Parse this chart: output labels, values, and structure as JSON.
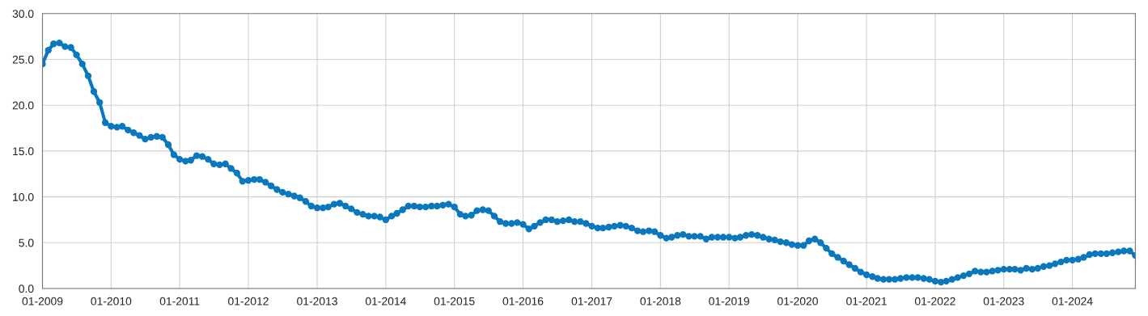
{
  "chart_data": {
    "type": "line",
    "x": [
      "2009-01",
      "2009-02",
      "2009-03",
      "2009-04",
      "2009-05",
      "2009-06",
      "2009-07",
      "2009-08",
      "2009-09",
      "2009-10",
      "2009-11",
      "2009-12",
      "2010-01",
      "2010-02",
      "2010-03",
      "2010-04",
      "2010-05",
      "2010-06",
      "2010-07",
      "2010-08",
      "2010-09",
      "2010-10",
      "2010-11",
      "2010-12",
      "2011-01",
      "2011-02",
      "2011-03",
      "2011-04",
      "2011-05",
      "2011-06",
      "2011-07",
      "2011-08",
      "2011-09",
      "2011-10",
      "2011-11",
      "2011-12",
      "2012-01",
      "2012-02",
      "2012-03",
      "2012-04",
      "2012-05",
      "2012-06",
      "2012-07",
      "2012-08",
      "2012-09",
      "2012-10",
      "2012-11",
      "2012-12",
      "2013-01",
      "2013-02",
      "2013-03",
      "2013-04",
      "2013-05",
      "2013-06",
      "2013-07",
      "2013-08",
      "2013-09",
      "2013-10",
      "2013-11",
      "2013-12",
      "2014-01",
      "2014-02",
      "2014-03",
      "2014-04",
      "2014-05",
      "2014-06",
      "2014-07",
      "2014-08",
      "2014-09",
      "2014-10",
      "2014-11",
      "2014-12",
      "2015-01",
      "2015-02",
      "2015-03",
      "2015-04",
      "2015-05",
      "2015-06",
      "2015-07",
      "2015-08",
      "2015-09",
      "2015-10",
      "2015-11",
      "2015-12",
      "2016-01",
      "2016-02",
      "2016-03",
      "2016-04",
      "2016-05",
      "2016-06",
      "2016-07",
      "2016-08",
      "2016-09",
      "2016-10",
      "2016-11",
      "2016-12",
      "2017-01",
      "2017-02",
      "2017-03",
      "2017-04",
      "2017-05",
      "2017-06",
      "2017-07",
      "2017-08",
      "2017-09",
      "2017-10",
      "2017-11",
      "2017-12",
      "2018-01",
      "2018-02",
      "2018-03",
      "2018-04",
      "2018-05",
      "2018-06",
      "2018-07",
      "2018-08",
      "2018-09",
      "2018-10",
      "2018-11",
      "2018-12",
      "2019-01",
      "2019-02",
      "2019-03",
      "2019-04",
      "2019-05",
      "2019-06",
      "2019-07",
      "2019-08",
      "2019-09",
      "2019-10",
      "2019-11",
      "2019-12",
      "2020-01",
      "2020-02",
      "2020-03",
      "2020-04",
      "2020-05",
      "2020-06",
      "2020-07",
      "2020-08",
      "2020-09",
      "2020-10",
      "2020-11",
      "2020-12",
      "2021-01",
      "2021-02",
      "2021-03",
      "2021-04",
      "2021-05",
      "2021-06",
      "2021-07",
      "2021-08",
      "2021-09",
      "2021-10",
      "2021-11",
      "2021-12",
      "2022-01",
      "2022-02",
      "2022-03",
      "2022-04",
      "2022-05",
      "2022-06",
      "2022-07",
      "2022-08",
      "2022-09",
      "2022-10",
      "2022-11",
      "2022-12",
      "2023-01",
      "2023-02",
      "2023-03",
      "2023-04",
      "2023-05",
      "2023-06",
      "2023-07",
      "2023-08",
      "2023-09",
      "2023-10",
      "2023-11",
      "2023-12",
      "2024-01",
      "2024-02",
      "2024-03",
      "2024-04",
      "2024-05",
      "2024-06",
      "2024-07",
      "2024-08",
      "2024-09",
      "2024-10",
      "2024-11",
      "2024-12"
    ],
    "series": [
      {
        "color": "#0b77bd",
        "values": [
          24.5,
          26.0,
          26.7,
          26.8,
          26.4,
          26.3,
          25.5,
          24.5,
          23.2,
          21.5,
          20.3,
          18.1,
          17.7,
          17.6,
          17.7,
          17.3,
          17.0,
          16.7,
          16.3,
          16.5,
          16.6,
          16.5,
          15.7,
          14.6,
          14.1,
          13.9,
          14.0,
          14.5,
          14.4,
          14.1,
          13.6,
          13.5,
          13.6,
          13.1,
          12.6,
          11.7,
          11.8,
          11.9,
          11.9,
          11.6,
          11.2,
          10.8,
          10.5,
          10.3,
          10.1,
          9.9,
          9.5,
          9.0,
          8.8,
          8.8,
          8.9,
          9.2,
          9.3,
          9.0,
          8.7,
          8.3,
          8.1,
          7.9,
          7.9,
          7.8,
          7.5,
          7.9,
          8.2,
          8.6,
          9.0,
          9.0,
          8.9,
          8.9,
          9.0,
          9.0,
          9.1,
          9.2,
          8.9,
          8.1,
          7.9,
          8.0,
          8.5,
          8.6,
          8.5,
          7.9,
          7.3,
          7.1,
          7.1,
          7.2,
          7.0,
          6.5,
          6.8,
          7.2,
          7.5,
          7.5,
          7.3,
          7.4,
          7.5,
          7.3,
          7.3,
          7.1,
          6.8,
          6.6,
          6.6,
          6.7,
          6.8,
          6.9,
          6.8,
          6.6,
          6.3,
          6.2,
          6.3,
          6.2,
          5.8,
          5.5,
          5.6,
          5.8,
          5.9,
          5.7,
          5.7,
          5.7,
          5.4,
          5.6,
          5.6,
          5.6,
          5.6,
          5.5,
          5.6,
          5.8,
          5.9,
          5.8,
          5.6,
          5.4,
          5.3,
          5.1,
          5.0,
          4.8,
          4.7,
          4.7,
          5.2,
          5.4,
          5.0,
          4.4,
          3.8,
          3.4,
          3.0,
          2.6,
          2.2,
          1.8,
          1.5,
          1.3,
          1.1,
          1.0,
          1.0,
          1.0,
          1.1,
          1.2,
          1.2,
          1.2,
          1.1,
          1.0,
          0.8,
          0.7,
          0.8,
          1.0,
          1.2,
          1.4,
          1.6,
          1.9,
          1.8,
          1.8,
          1.9,
          2.0,
          2.1,
          2.1,
          2.1,
          2.0,
          2.2,
          2.1,
          2.2,
          2.4,
          2.5,
          2.7,
          2.9,
          3.1,
          3.1,
          3.2,
          3.4,
          3.7,
          3.8,
          3.8,
          3.8,
          3.9,
          4.0,
          4.1,
          4.1,
          3.6
        ]
      }
    ],
    "xlim": [
      "2009-01",
      "2024-12"
    ],
    "xticks": [
      {
        "value": "2009-01",
        "label": "01-2009"
      },
      {
        "value": "2010-01",
        "label": "01-2010"
      },
      {
        "value": "2011-01",
        "label": "01-2011"
      },
      {
        "value": "2012-01",
        "label": "01-2012"
      },
      {
        "value": "2013-01",
        "label": "01-2013"
      },
      {
        "value": "2014-01",
        "label": "01-2014"
      },
      {
        "value": "2015-01",
        "label": "01-2015"
      },
      {
        "value": "2016-01",
        "label": "01-2016"
      },
      {
        "value": "2017-01",
        "label": "01-2017"
      },
      {
        "value": "2018-01",
        "label": "01-2018"
      },
      {
        "value": "2019-01",
        "label": "01-2019"
      },
      {
        "value": "2020-01",
        "label": "01-2020"
      },
      {
        "value": "2021-01",
        "label": "01-2021"
      },
      {
        "value": "2022-01",
        "label": "01-2022"
      },
      {
        "value": "2023-01",
        "label": "01-2023"
      },
      {
        "value": "2024-01",
        "label": "01-2024"
      }
    ],
    "ylim": [
      0,
      30
    ],
    "yticks": [
      {
        "value": 0,
        "label": "0.0"
      },
      {
        "value": 5,
        "label": "5.0"
      },
      {
        "value": 10,
        "label": "10.0"
      },
      {
        "value": 15,
        "label": "15.0"
      },
      {
        "value": 20,
        "label": "20.0"
      },
      {
        "value": 25,
        "label": "25.0"
      },
      {
        "value": 30,
        "label": "30.0"
      }
    ],
    "grid": true,
    "marker": "circle",
    "line_style": "solid"
  }
}
